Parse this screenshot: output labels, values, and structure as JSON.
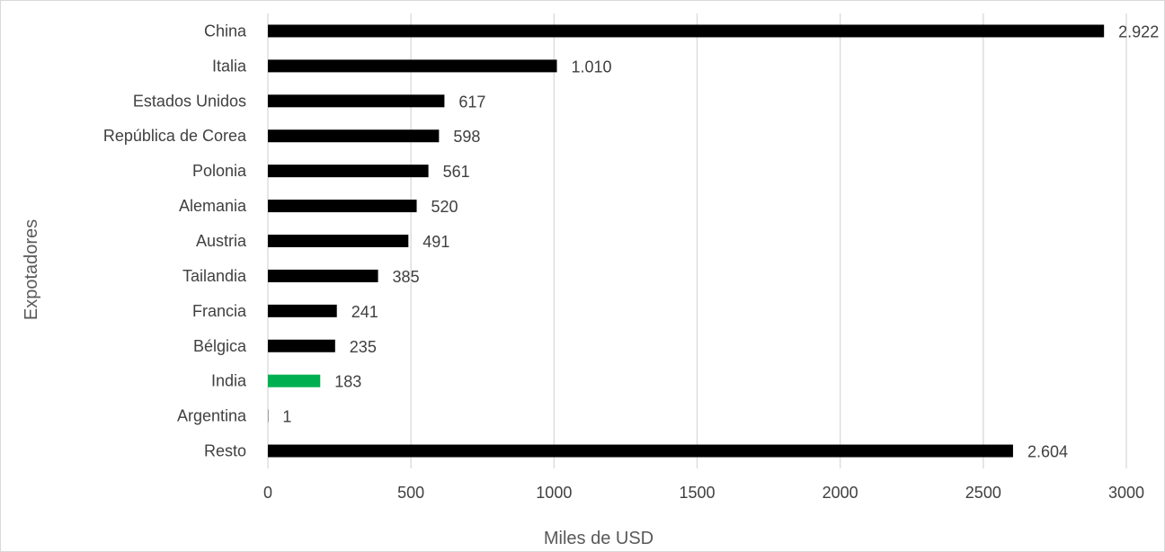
{
  "chart_data": {
    "type": "bar",
    "orientation": "horizontal",
    "categories": [
      "China",
      "Italia",
      "Estados Unidos",
      "República de Corea",
      "Polonia",
      "Alemania",
      "Austria",
      "Tailandia",
      "Francia",
      "Bélgica",
      "India",
      "Argentina",
      "Resto"
    ],
    "values": [
      2922,
      1010,
      617,
      598,
      561,
      520,
      491,
      385,
      241,
      235,
      183,
      1,
      2604
    ],
    "data_labels": [
      "2.922",
      "1.010",
      "617",
      "598",
      "561",
      "520",
      "491",
      "385",
      "241",
      "235",
      "183",
      "1",
      "2.604"
    ],
    "xlabel": "Miles de USD",
    "ylabel": "Expotadores",
    "xlim": [
      0,
      3000
    ],
    "xticks": [
      0,
      500,
      1000,
      1500,
      2000,
      2500,
      3000
    ],
    "xtick_labels": [
      "0",
      "500",
      "1000",
      "1500",
      "2000",
      "2500",
      "3000"
    ],
    "grid": "vertical",
    "legend": "none",
    "colors": {
      "default": "#000000",
      "highlight": "#00b050",
      "highlight_category": "India",
      "gridline": "#d9d9d9",
      "text": "#404040"
    }
  }
}
